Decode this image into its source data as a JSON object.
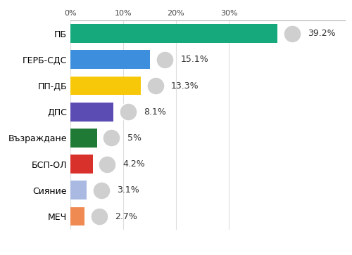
{
  "chart_data": {
    "type": "bar",
    "orientation": "horizontal",
    "categories": [
      "ПБ",
      "ГЕРБ-СДС",
      "ПП-ДБ",
      "ДПС",
      "Възраждане",
      "БСП-ОЛ",
      "Сияние",
      "МЕЧ"
    ],
    "values": [
      39.2,
      15.1,
      13.3,
      8.1,
      5,
      4.2,
      3.1,
      2.7
    ],
    "value_labels": [
      "39.2%",
      "15.1%",
      "13.3%",
      "8.1%",
      "5%",
      "4.2%",
      "3.1%",
      "2.7%"
    ],
    "colors": [
      "#16a97b",
      "#3d8fdd",
      "#f7c80a",
      "#5b4cb3",
      "#1f7a35",
      "#d8302b",
      "#a9b9e2",
      "#ef8a52"
    ],
    "xlim": [
      0,
      52
    ],
    "xticks": [
      {
        "value": 0,
        "label": "0%"
      },
      {
        "value": 10,
        "label": "10%"
      },
      {
        "value": 20,
        "label": "20%"
      },
      {
        "value": 30,
        "label": "30%"
      }
    ],
    "grid": true,
    "data_labels": true
  }
}
